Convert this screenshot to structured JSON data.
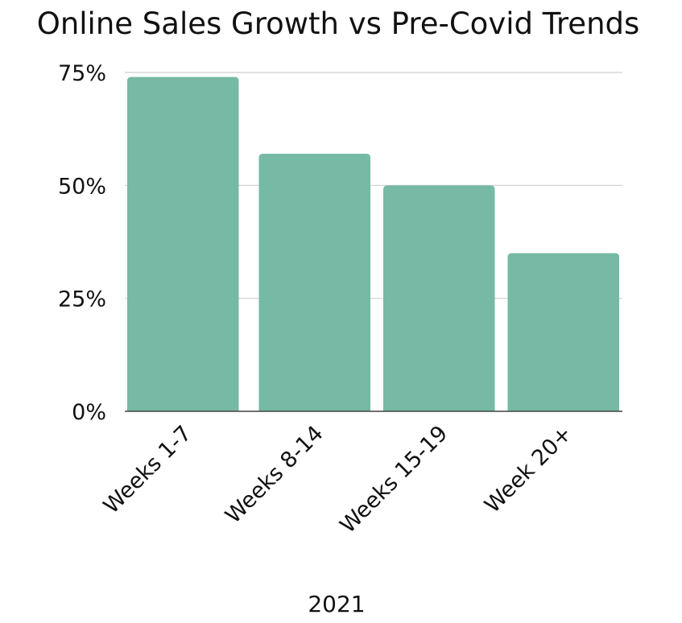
{
  "chart_data": {
    "type": "bar",
    "title": "Online Sales Growth vs Pre-Covid Trends",
    "xlabel": "2021",
    "ylabel": "",
    "categories": [
      "Weeks 1-7",
      "Weeks 8-14",
      "Weeks 15-19",
      "Week 20+"
    ],
    "values": [
      74,
      57,
      50,
      35
    ],
    "ylim": [
      0,
      75
    ],
    "yticks": [
      0,
      25,
      50,
      75
    ],
    "ytick_labels": [
      "0%",
      "25%",
      "50%",
      "75%"
    ],
    "grid": true,
    "legend": "none",
    "bar_color": "#76b9a5"
  }
}
